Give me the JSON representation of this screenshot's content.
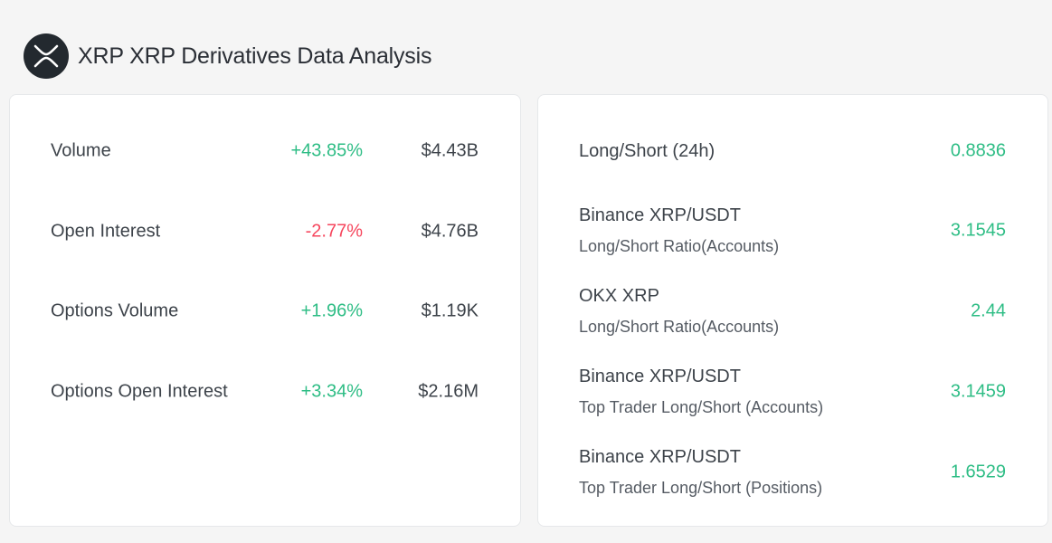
{
  "header": {
    "title": "XRP XRP Derivatives Data Analysis",
    "logo_icon": "xrp-logo-icon"
  },
  "colors": {
    "positive": "#2ebd85",
    "negative": "#f6465d",
    "logo_bg": "#23292f"
  },
  "metrics": [
    {
      "label": "Volume",
      "change": "+43.85%",
      "direction": "up",
      "value": "$4.43B"
    },
    {
      "label": "Open Interest",
      "change": "-2.77%",
      "direction": "down",
      "value": "$4.76B"
    },
    {
      "label": "Options Volume",
      "change": "+1.96%",
      "direction": "up",
      "value": "$1.19K"
    },
    {
      "label": "Options Open Interest",
      "change": "+3.34%",
      "direction": "up",
      "value": "$2.16M"
    }
  ],
  "ratios": [
    {
      "label": "Long/Short (24h)",
      "sublabel": "",
      "value": "0.8836"
    },
    {
      "label": "Binance XRP/USDT",
      "sublabel": "Long/Short Ratio(Accounts)",
      "value": "3.1545"
    },
    {
      "label": "OKX XRP",
      "sublabel": "Long/Short Ratio(Accounts)",
      "value": "2.44"
    },
    {
      "label": "Binance XRP/USDT",
      "sublabel": "Top Trader Long/Short (Accounts)",
      "value": "3.1459"
    },
    {
      "label": "Binance XRP/USDT",
      "sublabel": "Top Trader Long/Short (Positions)",
      "value": "1.6529"
    }
  ]
}
